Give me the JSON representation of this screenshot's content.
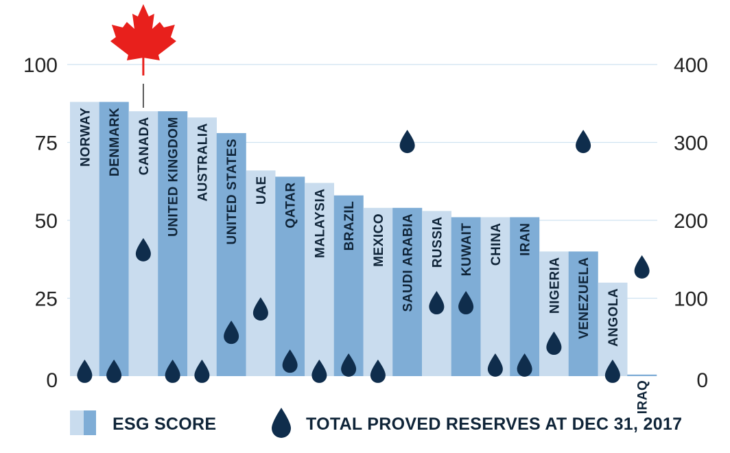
{
  "chart_data": {
    "type": "bar",
    "categories": [
      "NORWAY",
      "DENMARK",
      "CANADA",
      "UNITED KINGDOM",
      "AUSTRALIA",
      "UNITED STATES",
      "UAE",
      "QATAR",
      "MALAYSIA",
      "BRAZIL",
      "MEXICO",
      "SAUDI ARABIA",
      "RUSSIA",
      "KUWAIT",
      "CHINA",
      "IRAN",
      "NIGERIA",
      "VENEZUELA",
      "ANGOLA",
      "IRAQ"
    ],
    "series": [
      {
        "name": "ESG SCORE",
        "axis": "left",
        "marker": "bar",
        "values": [
          88,
          88,
          85,
          85,
          83,
          78,
          66,
          64,
          62,
          58,
          54,
          54,
          53,
          51,
          51,
          51,
          40,
          40,
          30,
          0.5
        ]
      },
      {
        "name": "TOTAL PROVED RESERVES AT DEC 31, 2017",
        "axis": "right",
        "marker": "drop",
        "values": [
          8,
          8,
          164,
          8,
          8,
          58,
          88,
          21,
          8,
          16,
          8,
          303,
          96,
          96,
          16,
          16,
          44,
          303,
          8,
          142
        ]
      }
    ],
    "y_left": {
      "ticks": [
        0,
        25,
        50,
        75,
        100
      ],
      "lim": [
        0,
        100
      ]
    },
    "y_right": {
      "ticks": [
        0,
        100,
        200,
        300,
        400
      ],
      "lim": [
        0,
        400
      ]
    },
    "grid": true,
    "legend": "bottom",
    "colors": {
      "bar_light": "#c9dcee",
      "bar_dark": "#7fadd6",
      "drop": "#0f2d4c",
      "grid": "#cfe2f1",
      "flag": "#e8201c"
    },
    "annotation_icon": "maple-leaf-icon"
  }
}
